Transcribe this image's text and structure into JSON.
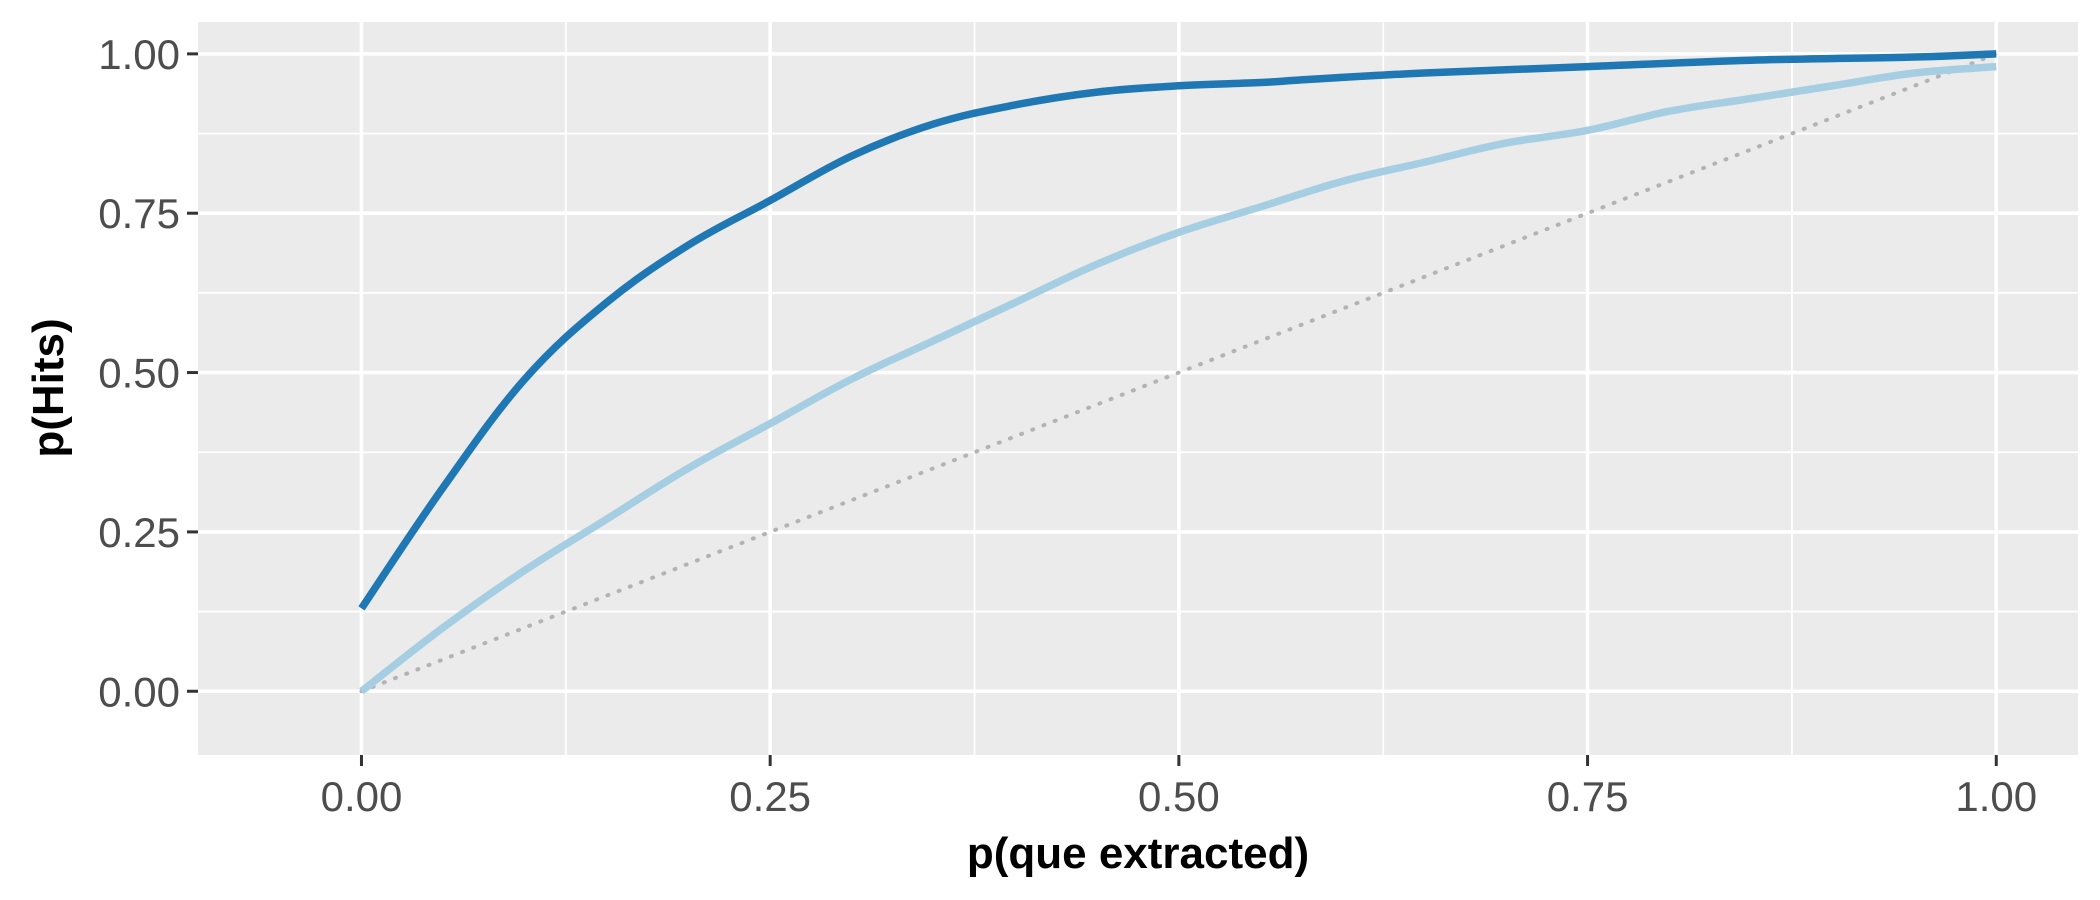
{
  "chart_data": {
    "type": "line",
    "title": "",
    "xlabel": "p(que extracted)",
    "ylabel": "p(Hits)",
    "xlim": [
      -0.1,
      1.05
    ],
    "ylim": [
      -0.1,
      1.05
    ],
    "x_ticks": [
      0,
      0.25,
      0.5,
      0.75,
      1
    ],
    "x_tick_labels": [
      "0.00",
      "0.25",
      "0.50",
      "0.75",
      "1.00"
    ],
    "y_ticks": [
      0,
      0.25,
      0.5,
      0.75,
      1
    ],
    "y_tick_labels": [
      "0.00",
      "0.25",
      "0.50",
      "0.75",
      "1.00"
    ],
    "grid": true,
    "legend": "none",
    "reference_line": {
      "x": [
        0,
        1
      ],
      "y": [
        0,
        1
      ],
      "color": "#B3B3B3",
      "style": "dotted"
    },
    "series": [
      {
        "color": "#1F78B4",
        "x": [
          0,
          0.05,
          0.1,
          0.15,
          0.2,
          0.25,
          0.3,
          0.35,
          0.4,
          0.45,
          0.5,
          0.55,
          0.58,
          0.65,
          0.75,
          0.85,
          0.95,
          1
        ],
        "y": [
          0.13,
          0.32,
          0.49,
          0.61,
          0.7,
          0.77,
          0.84,
          0.89,
          0.92,
          0.94,
          0.95,
          0.955,
          0.96,
          0.97,
          0.98,
          0.99,
          0.995,
          1.0
        ]
      },
      {
        "color": "#A6CEE3",
        "x": [
          0,
          0.05,
          0.1,
          0.15,
          0.2,
          0.25,
          0.3,
          0.35,
          0.4,
          0.45,
          0.5,
          0.55,
          0.6,
          0.65,
          0.7,
          0.75,
          0.8,
          0.85,
          0.9,
          0.95,
          1
        ],
        "y": [
          0,
          0.1,
          0.19,
          0.27,
          0.35,
          0.42,
          0.49,
          0.55,
          0.61,
          0.67,
          0.72,
          0.76,
          0.8,
          0.83,
          0.86,
          0.88,
          0.91,
          0.93,
          0.95,
          0.97,
          0.98
        ]
      }
    ]
  }
}
